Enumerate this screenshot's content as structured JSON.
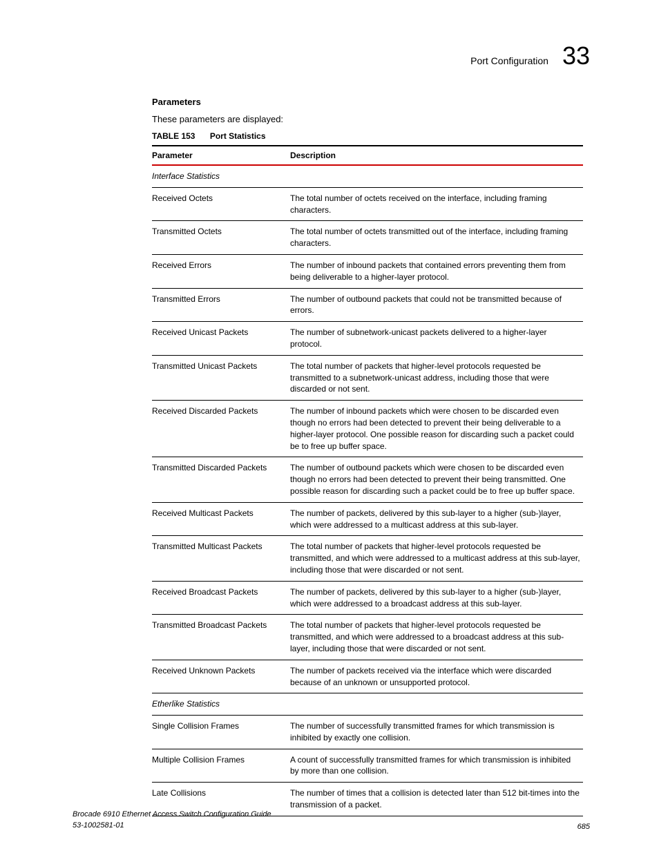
{
  "header": {
    "title": "Port Configuration",
    "chapter": "33"
  },
  "section": {
    "heading": "Parameters",
    "intro": "These parameters are displayed:"
  },
  "table": {
    "caption_label": "TABLE 153",
    "caption_title": "Port Statistics",
    "columns": [
      "Parameter",
      "Description"
    ],
    "rows": [
      {
        "section": true,
        "param": "Interface Statistics",
        "desc": ""
      },
      {
        "param": "Received Octets",
        "desc": "The total number of octets received on the interface, including framing characters."
      },
      {
        "param": "Transmitted Octets",
        "desc": "The total number of octets transmitted out of the interface, including framing characters."
      },
      {
        "param": "Received Errors",
        "desc": "The number of inbound packets that contained errors preventing them from being deliverable to a higher-layer protocol."
      },
      {
        "param": "Transmitted Errors",
        "desc": "The number of outbound packets that could not be transmitted because of errors."
      },
      {
        "param": "Received Unicast Packets",
        "desc": "The number of subnetwork-unicast packets delivered to a higher-layer protocol."
      },
      {
        "param": "Transmitted Unicast Packets",
        "desc": "The total number of packets that higher-level protocols requested be transmitted to a subnetwork-unicast address, including those that were discarded or not sent."
      },
      {
        "param": "Received Discarded Packets",
        "desc": "The number of inbound packets which were chosen to be discarded even though no errors had been detected to prevent their being deliverable to a higher-layer protocol. One possible reason for discarding such a packet could be to free up buffer space."
      },
      {
        "param": "Transmitted Discarded Packets",
        "desc": "The number of outbound packets which were chosen to be discarded even though no errors had been detected to prevent their being transmitted. One possible reason for discarding such a packet could be to free up buffer space."
      },
      {
        "param": "Received Multicast Packets",
        "desc": "The number of packets, delivered by this sub-layer to a higher (sub-)layer, which were addressed to a multicast address at this sub-layer."
      },
      {
        "param": "Transmitted Multicast Packets",
        "desc": "The total number of packets that higher-level protocols requested be transmitted, and which were addressed to a multicast address at this sub-layer, including those that were discarded or not sent."
      },
      {
        "param": "Received Broadcast Packets",
        "desc": "The number of packets, delivered by this sub-layer to a higher (sub-)layer, which were addressed to a broadcast address at this sub-layer."
      },
      {
        "param": "Transmitted Broadcast Packets",
        "desc": "The total number of packets that higher-level protocols requested be transmitted, and which were addressed to a broadcast address at this sub-layer, including those that were discarded or not sent."
      },
      {
        "param": "Received Unknown Packets",
        "desc": "The number of packets received via the interface which were discarded because of an unknown or unsupported protocol."
      },
      {
        "section": true,
        "param": "Etherlike Statistics",
        "desc": ""
      },
      {
        "param": "Single Collision Frames",
        "desc": "The number of successfully transmitted frames for which transmission is inhibited by exactly one collision."
      },
      {
        "param": "Multiple Collision Frames",
        "desc": "A count of successfully transmitted frames for which transmission is inhibited by more than one collision."
      },
      {
        "param": "Late Collisions",
        "desc": "The number of times that a collision is detected later than 512 bit-times into the transmission of a packet."
      }
    ]
  },
  "footer": {
    "line1": "Brocade 6910 Ethernet Access Switch Configuration Guide",
    "line2": "53-1002581-01",
    "page": "685"
  }
}
